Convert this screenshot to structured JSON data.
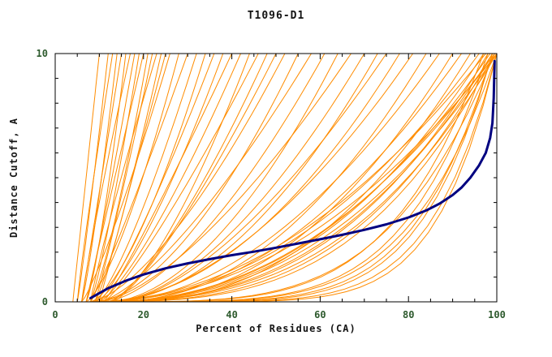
{
  "page": {
    "background": "#ffffff"
  },
  "chart_data": {
    "type": "line",
    "title": "T1096-D1",
    "xlabel": "Percent of Residues (CA)",
    "ylabel": "Distance Cutoff, A",
    "xlim": [
      0,
      100
    ],
    "ylim": [
      0,
      10
    ],
    "xticks_major": [
      0,
      20,
      40,
      60,
      80,
      100
    ],
    "xtick_minor_step": 5,
    "yticks_major": [
      0,
      10
    ],
    "ytick_minor_step": 1,
    "grid": false,
    "legend": "none",
    "frame_color": "#000000",
    "tick_label_color": "#2d5a2d",
    "title_color": "#141414",
    "axis_label_color": "#141414",
    "model_color": "#ff8c00",
    "target_color": "#000080",
    "target_series": {
      "name": "highlighted-model-curve",
      "points": [
        [
          8,
          0.15
        ],
        [
          12,
          0.55
        ],
        [
          16,
          0.85
        ],
        [
          20,
          1.1
        ],
        [
          25,
          1.35
        ],
        [
          30,
          1.55
        ],
        [
          35,
          1.72
        ],
        [
          40,
          1.88
        ],
        [
          45,
          2.02
        ],
        [
          50,
          2.18
        ],
        [
          55,
          2.35
        ],
        [
          60,
          2.52
        ],
        [
          65,
          2.7
        ],
        [
          70,
          2.9
        ],
        [
          75,
          3.12
        ],
        [
          80,
          3.4
        ],
        [
          84,
          3.68
        ],
        [
          87,
          3.95
        ],
        [
          90,
          4.3
        ],
        [
          92,
          4.6
        ],
        [
          94,
          5.0
        ],
        [
          96,
          5.5
        ],
        [
          97.5,
          6.0
        ],
        [
          98.5,
          6.6
        ],
        [
          99,
          7.2
        ],
        [
          99.3,
          8.2
        ],
        [
          99.5,
          9.7
        ]
      ]
    },
    "model_power_curves": [
      [
        4,
        10,
        1.0
      ],
      [
        5,
        12,
        1.1
      ],
      [
        5,
        13,
        0.9
      ],
      [
        6,
        14,
        1.2
      ],
      [
        6,
        15,
        1.0
      ],
      [
        7,
        16,
        1.3
      ],
      [
        6,
        17,
        0.9
      ],
      [
        7,
        18,
        1.1
      ],
      [
        8,
        19,
        1.2
      ],
      [
        7,
        20,
        1.0
      ],
      [
        8,
        21,
        1.3
      ],
      [
        9,
        22,
        1.1
      ],
      [
        8,
        23,
        0.9
      ],
      [
        9,
        24,
        1.2
      ],
      [
        10,
        25,
        1.0
      ],
      [
        6,
        26,
        1.2
      ],
      [
        7,
        28,
        1.4
      ],
      [
        8,
        30,
        1.1
      ],
      [
        9,
        32,
        1.3
      ],
      [
        8,
        34,
        1.5
      ],
      [
        10,
        36,
        1.2
      ],
      [
        9,
        38,
        1.4
      ],
      [
        11,
        40,
        1.1
      ],
      [
        10,
        42,
        1.3
      ],
      [
        12,
        44,
        1.5
      ],
      [
        11,
        46,
        1.2
      ],
      [
        12,
        48,
        1.4
      ],
      [
        13,
        50,
        1.3
      ],
      [
        8,
        52,
        1.5
      ],
      [
        9,
        55,
        1.7
      ],
      [
        10,
        58,
        1.4
      ],
      [
        11,
        61,
        1.6
      ],
      [
        12,
        64,
        1.8
      ],
      [
        10,
        67,
        1.5
      ],
      [
        13,
        70,
        1.7
      ],
      [
        12,
        73,
        1.9
      ],
      [
        14,
        75,
        1.6
      ],
      [
        9,
        78,
        2.0
      ],
      [
        11,
        81,
        1.8
      ],
      [
        13,
        84,
        2.1
      ],
      [
        12,
        87,
        1.9
      ],
      [
        14,
        90,
        2.2
      ],
      [
        13,
        92,
        2.0
      ],
      [
        15,
        94,
        2.3
      ],
      [
        6,
        96,
        2.2
      ],
      [
        7,
        97,
        2.5
      ],
      [
        8,
        97.5,
        2.0
      ],
      [
        6,
        98,
        2.8
      ],
      [
        9,
        98.5,
        2.3
      ],
      [
        7,
        99,
        3.0
      ],
      [
        8,
        99,
        2.6
      ],
      [
        10,
        99.5,
        2.2
      ],
      [
        6,
        99.5,
        3.2
      ],
      [
        9,
        100,
        2.4
      ],
      [
        5,
        100,
        2.9
      ],
      [
        8,
        100,
        2.1
      ],
      [
        5,
        97,
        4.5
      ],
      [
        6,
        98,
        5.0
      ],
      [
        7,
        99,
        5.5
      ],
      [
        5,
        99,
        6.0
      ],
      [
        8,
        99.5,
        4.0
      ],
      [
        6,
        100,
        6.5
      ],
      [
        9,
        100,
        4.8
      ],
      [
        7,
        100,
        7.0
      ]
    ]
  }
}
